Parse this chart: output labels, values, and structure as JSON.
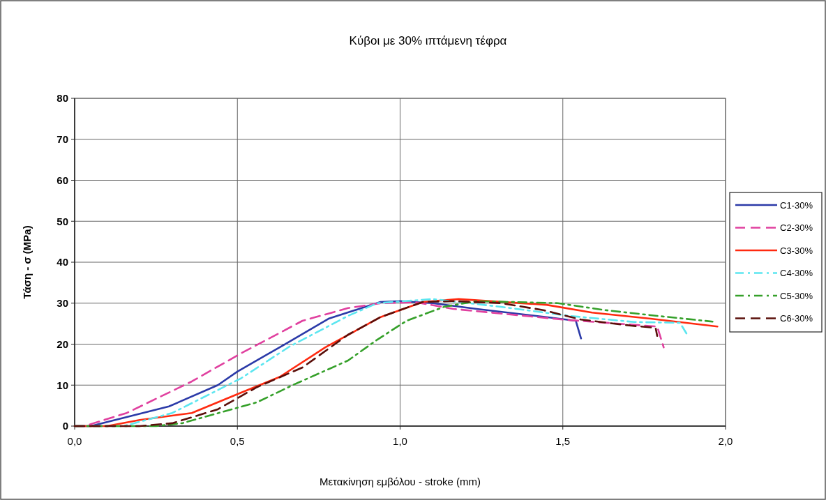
{
  "chart_data": {
    "type": "line",
    "title": "Κύβοι με 30% ιπτάμενη τέφρα",
    "xlabel": "Μετακίνηση εμβόλου - stroke (mm)",
    "ylabel": "Τάση - σ (MPa)",
    "xlim": [
      0,
      2
    ],
    "xticks": [
      {
        "value": 0,
        "label": "0,0"
      },
      {
        "value": 0.5,
        "label": "0,5"
      },
      {
        "value": 1,
        "label": "1,0"
      },
      {
        "value": 1.5,
        "label": "1,5"
      },
      {
        "value": 2,
        "label": "2,0"
      }
    ],
    "ylim": [
      0,
      80
    ],
    "yticks": [
      0,
      10,
      20,
      30,
      40,
      50,
      60,
      70,
      80
    ],
    "grid": true,
    "legend": "right",
    "marker": "none",
    "series": [
      {
        "name": "C1-30%",
        "color": "#2b3aa8",
        "line_style": "solid",
        "x": [
          0,
          0.05,
          0.29,
          0.44,
          0.5,
          0.64,
          0.78,
          0.94,
          1.0,
          1.1,
          1.235,
          1.45,
          1.54,
          1.556
        ],
        "values": [
          0,
          0,
          4.8,
          10,
          13.3,
          19.7,
          26.2,
          30.3,
          30.5,
          30,
          28.6,
          26.6,
          25.7,
          21.4
        ]
      },
      {
        "name": "C2-30%",
        "color": "#e0409f",
        "line_style": "dashed",
        "x": [
          0,
          0.03,
          0.16,
          0.36,
          0.51,
          0.7,
          0.84,
          0.94,
          1.05,
          1.164,
          1.5,
          1.79,
          1.81
        ],
        "values": [
          0,
          0,
          3.2,
          10.9,
          17.7,
          25.7,
          28.8,
          30,
          30.2,
          28.6,
          26,
          24.3,
          19.2
        ]
      },
      {
        "name": "C3-30%",
        "color": "#ff2a10",
        "line_style": "solid",
        "x": [
          0,
          0.1,
          0.2,
          0.36,
          0.5,
          0.63,
          0.77,
          0.94,
          1.07,
          1.18,
          1.45,
          1.59,
          1.77,
          1.975
        ],
        "values": [
          0,
          0,
          1.5,
          3.2,
          7.8,
          12,
          19.2,
          26.6,
          30.3,
          31,
          29.6,
          27.7,
          26.2,
          24.3
        ]
      },
      {
        "name": "C4-30%",
        "color": "#5ce6f0",
        "line_style": "dotted",
        "x": [
          0,
          0.15,
          0.3,
          0.51,
          0.66,
          0.84,
          0.93,
          1.1,
          1.31,
          1.52,
          1.72,
          1.86,
          1.88
        ],
        "values": [
          0,
          0,
          3.2,
          11.6,
          19.4,
          26.9,
          30,
          31,
          29.1,
          26.9,
          25.4,
          25.2,
          22.6
        ]
      },
      {
        "name": "C5-30%",
        "color": "#35a02a",
        "line_style": "dotted",
        "x": [
          0,
          0.25,
          0.33,
          0.56,
          0.67,
          0.84,
          0.93,
          1.02,
          1.135,
          1.235,
          1.485,
          1.63,
          1.79,
          1.96
        ],
        "values": [
          0,
          0,
          0.7,
          5.8,
          10,
          16,
          21.1,
          25.7,
          29.1,
          30.5,
          30,
          28.3,
          26.9,
          25.5
        ]
      },
      {
        "name": "C6-30%",
        "color": "#5a0f0a",
        "line_style": "dashed",
        "x": [
          0,
          0.2,
          0.3,
          0.44,
          0.56,
          0.7,
          0.84,
          0.94,
          1.07,
          1.164,
          1.31,
          1.44,
          1.51,
          1.556,
          1.71,
          1.785,
          1.79
        ],
        "values": [
          0,
          0,
          0.7,
          4.1,
          9.5,
          14.3,
          22.3,
          26.6,
          30.3,
          30.5,
          30,
          28.3,
          26.9,
          26,
          24.5,
          24,
          22
        ]
      }
    ]
  }
}
